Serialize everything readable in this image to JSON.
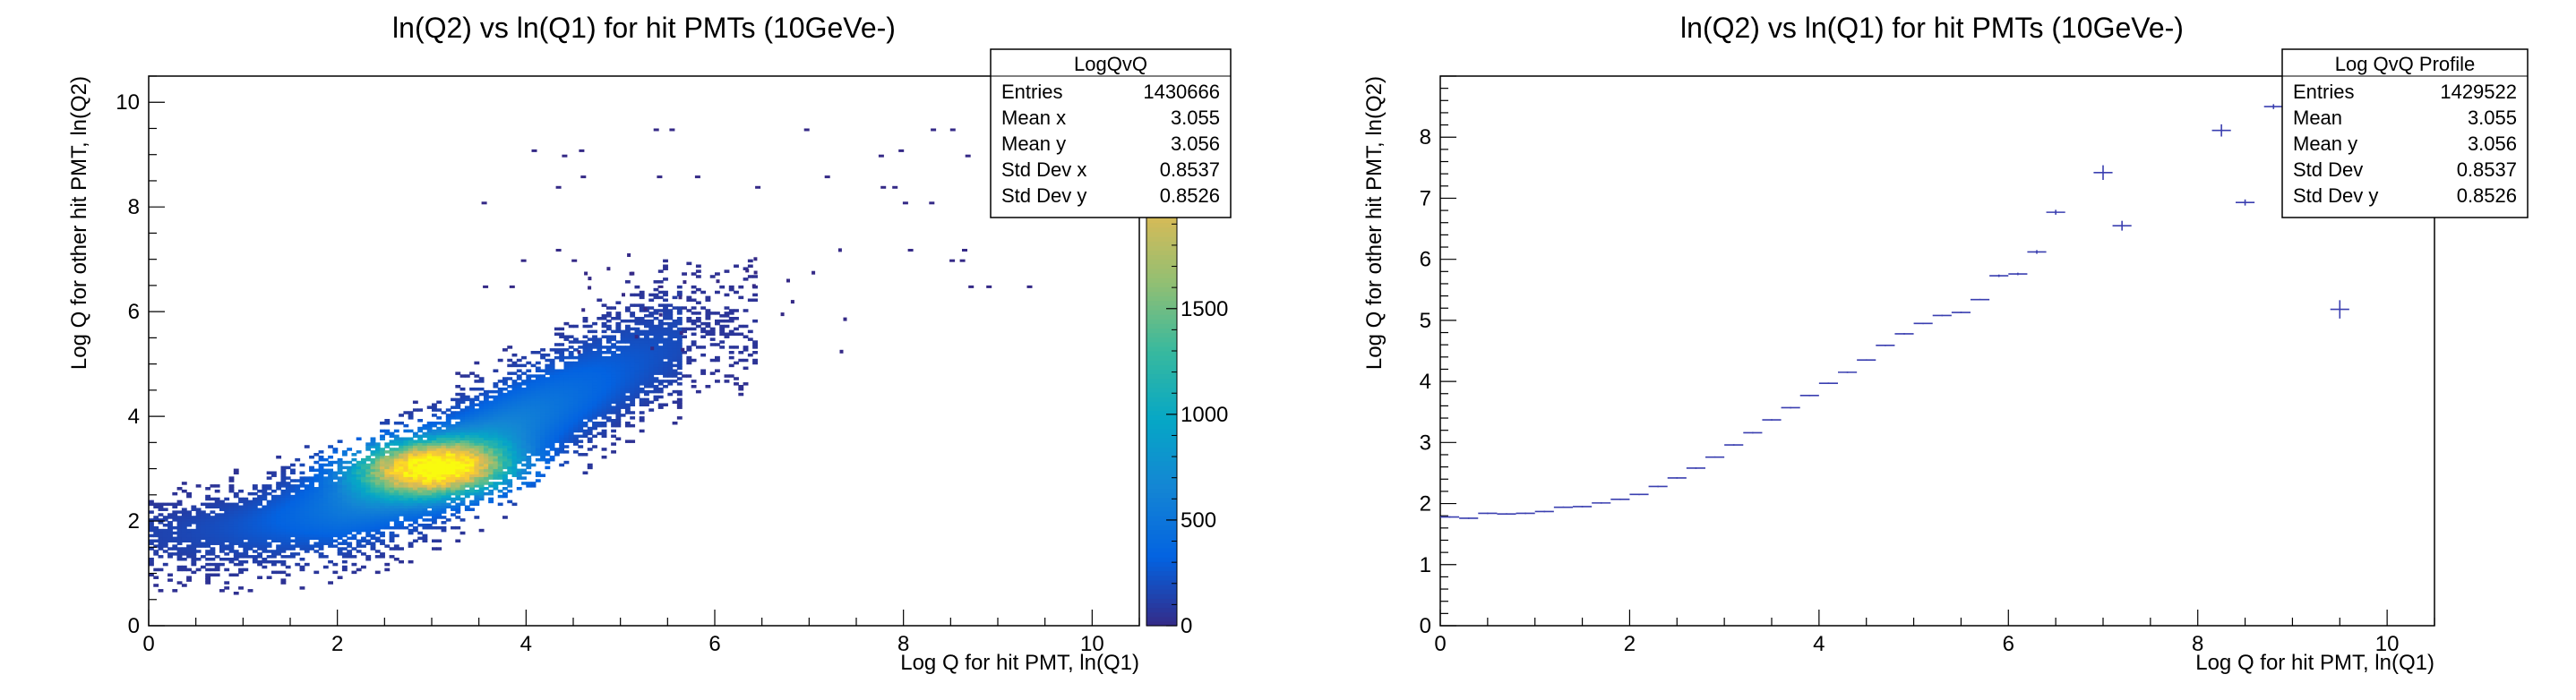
{
  "canvas": {
    "background": "#ffffff"
  },
  "chart_data": [
    {
      "type": "heatmap",
      "title": "ln(Q2) vs ln(Q1) for hit PMTs (10GeVe-)",
      "xlabel": "Log Q for hit PMT, ln(Q1)",
      "ylabel": "Log Q for other hit PMT, ln(Q2)",
      "xlim": [
        0,
        10.5
      ],
      "ylim": [
        0,
        10.5
      ],
      "x_ticks": [
        0,
        2,
        4,
        6,
        8,
        10
      ],
      "y_ticks": [
        0,
        2,
        4,
        6,
        8,
        10
      ],
      "colorbar": {
        "range": [
          0,
          2600
        ],
        "ticks": [
          0,
          500,
          1000,
          1500,
          2000
        ],
        "visible_tick_labels": [
          "0",
          "500",
          "1000",
          "1500",
          "2000"
        ],
        "partial_tick_label": "00",
        "palette": "parula",
        "colors": [
          "#352a87",
          "#0363e1",
          "#1485d4",
          "#06a7c6",
          "#38b99e",
          "#92bf73",
          "#d9ba56",
          "#fcce2e",
          "#f9fb0e"
        ]
      },
      "distribution": {
        "core_trend": [
          [
            0.2,
            1.75
          ],
          [
            1,
            1.9
          ],
          [
            2,
            2.25
          ],
          [
            3,
            2.95
          ],
          [
            4,
            3.9
          ],
          [
            5,
            4.8
          ],
          [
            5.8,
            5.5
          ]
        ],
        "core_peak": [
          3.0,
          3.0
        ],
        "isolated_lines_y": [
          7.2,
          7.0,
          6.5,
          8.1,
          8.4,
          8.6,
          9.0,
          9.1,
          9.5
        ]
      },
      "stats": {
        "title": "LogQvQ",
        "rows": [
          {
            "label": "Entries",
            "value": "1430666"
          },
          {
            "label": "Mean x",
            "value": "3.055"
          },
          {
            "label": "Mean y",
            "value": "3.056"
          },
          {
            "label": "Std Dev x",
            "value": "0.8537"
          },
          {
            "label": "Std Dev y",
            "value": "0.8526"
          }
        ]
      },
      "grid": false
    },
    {
      "type": "scatter",
      "subtype": "profile",
      "title": "ln(Q2) vs ln(Q1) for hit PMTs (10GeVe-)",
      "xlabel": "Log Q for hit PMT, ln(Q1)",
      "ylabel": "Log Q for other hit PMT, ln(Q2)",
      "xlim": [
        0,
        10.5
      ],
      "ylim": [
        0,
        9
      ],
      "x_ticks": [
        0,
        2,
        4,
        6,
        8,
        10
      ],
      "y_ticks": [
        0,
        1,
        2,
        3,
        4,
        5,
        6,
        7,
        8
      ],
      "marker_color": "#3a3fb0",
      "bin_half_width": 0.1,
      "points": [
        {
          "x": 0.1,
          "y": 1.78,
          "ey": 0.01
        },
        {
          "x": 0.3,
          "y": 1.76,
          "ey": 0.01
        },
        {
          "x": 0.5,
          "y": 1.84,
          "ey": 0.01
        },
        {
          "x": 0.7,
          "y": 1.83,
          "ey": 0.01
        },
        {
          "x": 0.9,
          "y": 1.84,
          "ey": 0.01
        },
        {
          "x": 1.1,
          "y": 1.87,
          "ey": 0.01
        },
        {
          "x": 1.3,
          "y": 1.94,
          "ey": 0.01
        },
        {
          "x": 1.5,
          "y": 1.95,
          "ey": 0.01
        },
        {
          "x": 1.7,
          "y": 2.01,
          "ey": 0.01
        },
        {
          "x": 1.9,
          "y": 2.07,
          "ey": 0.01
        },
        {
          "x": 2.1,
          "y": 2.15,
          "ey": 0.01
        },
        {
          "x": 2.3,
          "y": 2.28,
          "ey": 0.01
        },
        {
          "x": 2.5,
          "y": 2.42,
          "ey": 0.01
        },
        {
          "x": 2.7,
          "y": 2.58,
          "ey": 0.01
        },
        {
          "x": 2.9,
          "y": 2.76,
          "ey": 0.01
        },
        {
          "x": 3.1,
          "y": 2.96,
          "ey": 0.01
        },
        {
          "x": 3.3,
          "y": 3.16,
          "ey": 0.01
        },
        {
          "x": 3.5,
          "y": 3.37,
          "ey": 0.01
        },
        {
          "x": 3.7,
          "y": 3.57,
          "ey": 0.01
        },
        {
          "x": 3.9,
          "y": 3.77,
          "ey": 0.01
        },
        {
          "x": 4.1,
          "y": 3.97,
          "ey": 0.01
        },
        {
          "x": 4.3,
          "y": 4.15,
          "ey": 0.01
        },
        {
          "x": 4.5,
          "y": 4.35,
          "ey": 0.01
        },
        {
          "x": 4.7,
          "y": 4.59,
          "ey": 0.01
        },
        {
          "x": 4.9,
          "y": 4.78,
          "ey": 0.01
        },
        {
          "x": 5.1,
          "y": 4.95,
          "ey": 0.01
        },
        {
          "x": 5.3,
          "y": 5.08,
          "ey": 0.01
        },
        {
          "x": 5.5,
          "y": 5.13,
          "ey": 0.01
        },
        {
          "x": 5.7,
          "y": 5.34,
          "ey": 0.01
        },
        {
          "x": 5.9,
          "y": 5.73,
          "ey": 0.02
        },
        {
          "x": 6.1,
          "y": 5.76,
          "ey": 0.02
        },
        {
          "x": 6.3,
          "y": 6.12,
          "ey": 0.03
        },
        {
          "x": 6.5,
          "y": 6.77,
          "ey": 0.04
        },
        {
          "x": 7.0,
          "y": 7.42,
          "ey": 0.12
        },
        {
          "x": 7.2,
          "y": 6.55,
          "ey": 0.08
        },
        {
          "x": 8.25,
          "y": 8.11,
          "ey": 0.1
        },
        {
          "x": 8.5,
          "y": 6.93,
          "ey": 0.05
        },
        {
          "x": 8.8,
          "y": 8.5,
          "ey": 0.04
        },
        {
          "x": 9.5,
          "y": 5.18,
          "ey": 0.15
        }
      ],
      "stats": {
        "title": "Log QvQ Profile",
        "rows": [
          {
            "label": "Entries",
            "value": "1429522"
          },
          {
            "label": "Mean",
            "value": "3.055"
          },
          {
            "label": "Mean y",
            "value": "3.056"
          },
          {
            "label": "Std Dev",
            "value": "0.8537"
          },
          {
            "label": "Std Dev y",
            "value": "0.8526"
          }
        ]
      },
      "grid": false
    }
  ]
}
